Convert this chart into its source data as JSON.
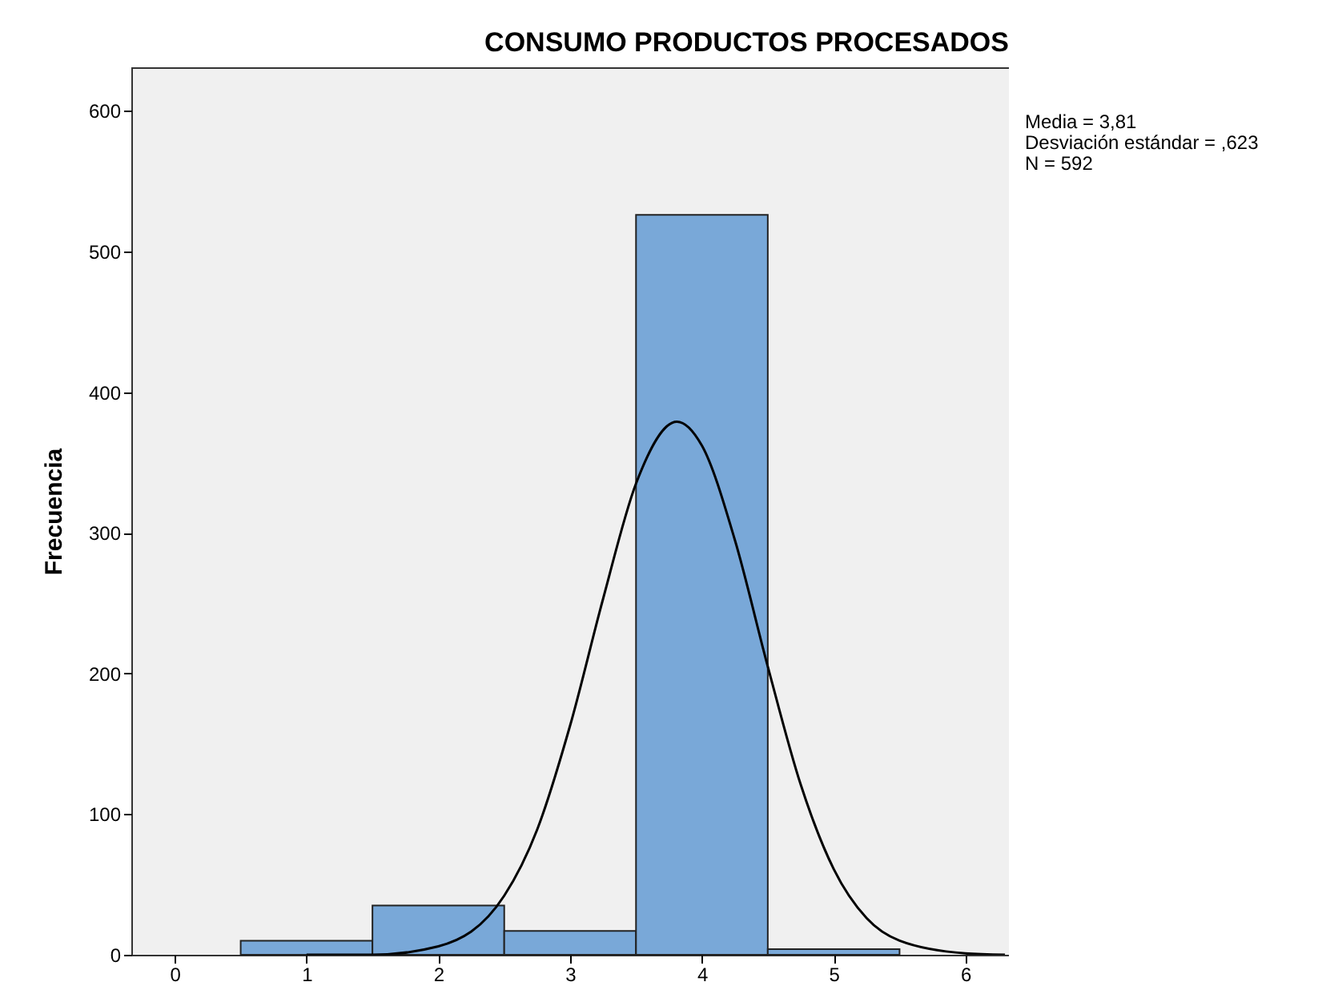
{
  "chart_data": {
    "type": "histogram",
    "title": "CONSUMO PRODUCTOS PROCESADOS",
    "ylabel": "Frecuencia",
    "annotations": [
      "Media = 3,81",
      "Desviación estándar = ,623",
      "N = 592"
    ],
    "bins": [
      0.5,
      1.5,
      2.5,
      3.5,
      4.5,
      5.5
    ],
    "series": [
      {
        "color": "#79a8d8",
        "values": [
          10,
          35,
          17,
          526,
          4
        ]
      },
      {
        "type": "line",
        "color": "#000000",
        "x": [
          1.0,
          1.5,
          2.0,
          2.5,
          2.75,
          3.0,
          3.25,
          3.5,
          3.81,
          4.0,
          4.25,
          4.5,
          4.75,
          5.0,
          5.25,
          5.5,
          6.0,
          6.3
        ],
        "values": [
          0,
          0,
          6,
          42,
          89,
          163,
          253,
          335,
          379,
          362,
          295,
          205,
          121,
          61,
          26,
          10,
          1,
          0
        ]
      }
    ],
    "xlim": [
      -0.33,
      6.33
    ],
    "xticks": [
      0,
      1,
      2,
      3,
      4,
      5,
      6
    ],
    "ylim": [
      0,
      631
    ],
    "yticks": [
      0,
      100,
      200,
      300,
      400,
      500,
      600
    ],
    "marker": "none",
    "line_style": "solid",
    "grid": false
  }
}
